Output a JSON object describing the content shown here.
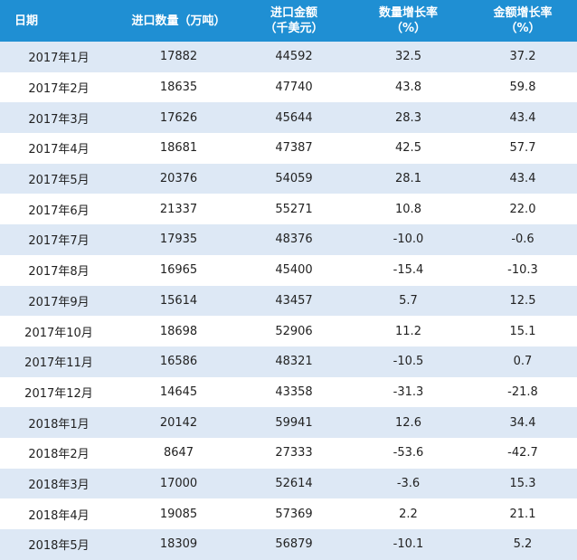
{
  "header": {
    "date": "日期",
    "volume": "进口数量（万吨）",
    "value_line1": "进口金额",
    "value_line2": "（千美元）",
    "vol_growth_line1": "数量增长率",
    "vol_growth_line2": "（%）",
    "val_growth_line1": "金额增长率",
    "val_growth_line2": "（%）"
  },
  "rows": [
    {
      "date": "2017年1月",
      "volume": "17882",
      "value": "44592",
      "vol_growth": "32.5",
      "val_growth": "37.2"
    },
    {
      "date": "2017年2月",
      "volume": "18635",
      "value": "47740",
      "vol_growth": "43.8",
      "val_growth": "59.8"
    },
    {
      "date": "2017年3月",
      "volume": "17626",
      "value": "45644",
      "vol_growth": "28.3",
      "val_growth": "43.4"
    },
    {
      "date": "2017年4月",
      "volume": "18681",
      "value": "47387",
      "vol_growth": "42.5",
      "val_growth": "57.7"
    },
    {
      "date": "2017年5月",
      "volume": "20376",
      "value": "54059",
      "vol_growth": "28.1",
      "val_growth": "43.4"
    },
    {
      "date": "2017年6月",
      "volume": "21337",
      "value": "55271",
      "vol_growth": "10.8",
      "val_growth": "22.0"
    },
    {
      "date": "2017年7月",
      "volume": "17935",
      "value": "48376",
      "vol_growth": "-10.0",
      "val_growth": "-0.6"
    },
    {
      "date": "2017年8月",
      "volume": "16965",
      "value": "45400",
      "vol_growth": "-15.4",
      "val_growth": "-10.3"
    },
    {
      "date": "2017年9月",
      "volume": "15614",
      "value": "43457",
      "vol_growth": "5.7",
      "val_growth": "12.5"
    },
    {
      "date": "2017年10月",
      "volume": "18698",
      "value": "52906",
      "vol_growth": "11.2",
      "val_growth": "15.1"
    },
    {
      "date": "2017年11月",
      "volume": "16586",
      "value": "48321",
      "vol_growth": "-10.5",
      "val_growth": "0.7"
    },
    {
      "date": "2017年12月",
      "volume": "14645",
      "value": "43358",
      "vol_growth": "-31.3",
      "val_growth": "-21.8"
    },
    {
      "date": "2018年1月",
      "volume": "20142",
      "value": "59941",
      "vol_growth": "12.6",
      "val_growth": "34.4"
    },
    {
      "date": "2018年2月",
      "volume": "8647",
      "value": "27333",
      "vol_growth": "-53.6",
      "val_growth": "-42.7"
    },
    {
      "date": "2018年3月",
      "volume": "17000",
      "value": "52614",
      "vol_growth": "-3.6",
      "val_growth": "15.3"
    },
    {
      "date": "2018年4月",
      "volume": "19085",
      "value": "57369",
      "vol_growth": "2.2",
      "val_growth": "21.1"
    },
    {
      "date": "2018年5月",
      "volume": "18309",
      "value": "56879",
      "vol_growth": "-10.1",
      "val_growth": "5.2"
    }
  ],
  "colors": {
    "header_bg": "#1f8fd3",
    "header_text": "#ffffff",
    "alt_row": "#dde8f5",
    "row": "#ffffff"
  }
}
